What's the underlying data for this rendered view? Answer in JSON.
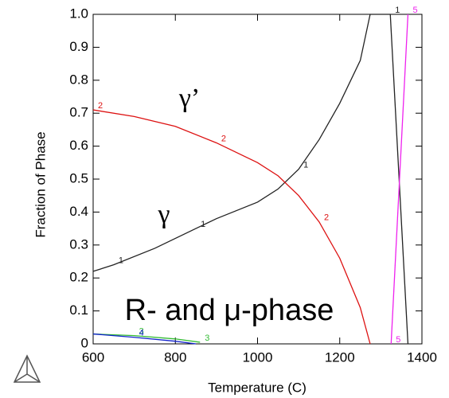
{
  "chart_data": {
    "type": "line",
    "xlabel": "Temperature (C)",
    "ylabel": "Fraction of Phase",
    "xlim": [
      600,
      1400
    ],
    "ylim": [
      0,
      1
    ],
    "xticks": [
      600,
      800,
      1000,
      1200,
      1400
    ],
    "yticks": [
      0,
      0.1,
      0.2,
      0.3,
      0.4,
      0.5,
      0.6,
      0.7,
      0.8,
      0.9,
      {
        "value": 1,
        "label": "1.0"
      }
    ],
    "annotations": [
      "γ’",
      "γ",
      "R- and μ-phase"
    ],
    "series": [
      {
        "name": "1",
        "color": "#222222",
        "x": [
          600,
          650,
          750,
          850,
          900,
          1000,
          1050,
          1100,
          1150,
          1200,
          1250,
          1274,
          1323,
          1366
        ],
        "values": [
          0.22,
          0.24,
          0.29,
          0.35,
          0.38,
          0.43,
          0.47,
          0.53,
          0.62,
          0.73,
          0.86,
          1.0,
          1.0,
          0
        ]
      },
      {
        "name": "2",
        "color": "#dd1111",
        "x": [
          600,
          700,
          800,
          900,
          1000,
          1050,
          1100,
          1150,
          1200,
          1250,
          1274
        ],
        "values": [
          0.71,
          0.69,
          0.66,
          0.61,
          0.55,
          0.51,
          0.45,
          0.37,
          0.26,
          0.11,
          0
        ]
      },
      {
        "name": "3",
        "color": "#33bb33",
        "x": [
          600,
          700,
          800,
          860
        ],
        "values": [
          0.03,
          0.025,
          0.015,
          0.005
        ]
      },
      {
        "name": "4",
        "color": "#1122cc",
        "x": [
          600,
          700,
          800,
          850
        ],
        "values": [
          0.03,
          0.02,
          0.008,
          0
        ]
      },
      {
        "name": "5",
        "color": "#ee22ee",
        "x": [
          1325,
          1366
        ],
        "values": [
          0,
          1.0
        ]
      }
    ]
  }
}
